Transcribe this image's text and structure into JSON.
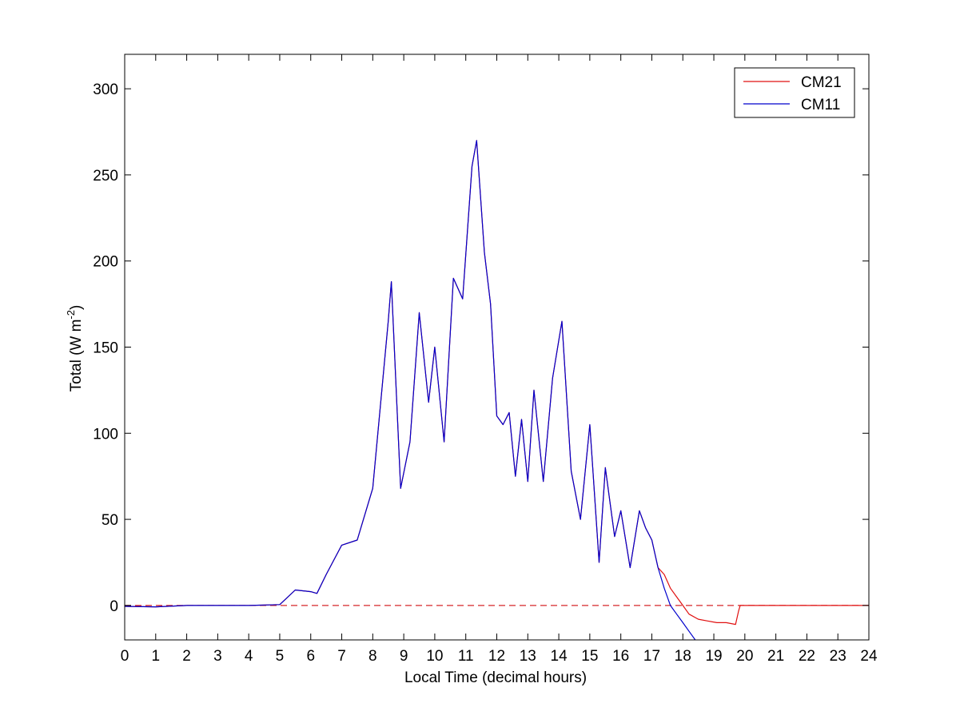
{
  "chart_data": {
    "type": "line",
    "title": "",
    "xlabel": "Local Time (decimal hours)",
    "ylabel_main": "Total (W m",
    "ylabel_sup": "-2",
    "ylabel_close": ")",
    "xlim": [
      0,
      24
    ],
    "ylim": [
      -20,
      320
    ],
    "x_ticks": [
      0,
      1,
      2,
      3,
      4,
      5,
      6,
      7,
      8,
      9,
      10,
      11,
      12,
      13,
      14,
      15,
      16,
      17,
      18,
      19,
      20,
      21,
      22,
      23,
      24
    ],
    "y_ticks": [
      0,
      50,
      100,
      150,
      200,
      250,
      300
    ],
    "grid": false,
    "legend_position": "top-right",
    "reference_line": {
      "y": 0,
      "style": "dashed",
      "color": "#d62728"
    },
    "colors": {
      "CM21": "#e01010",
      "CM11": "#0000cc"
    },
    "series": [
      {
        "name": "CM21",
        "x": [
          0,
          1,
          2,
          3,
          4,
          5,
          5.5,
          6,
          6.2,
          6.5,
          7,
          7.5,
          8,
          8.5,
          8.6,
          8.9,
          9.2,
          9.5,
          9.8,
          10,
          10.3,
          10.6,
          10.9,
          11.2,
          11.35,
          11.6,
          11.8,
          12,
          12.2,
          12.4,
          12.6,
          12.8,
          13,
          13.2,
          13.5,
          13.8,
          14.1,
          14.4,
          14.7,
          15,
          15.3,
          15.5,
          15.8,
          16,
          16.3,
          16.6,
          16.8,
          17,
          17.2,
          17.4,
          17.6,
          17.8,
          18,
          18.2,
          18.5,
          18.8,
          19.1,
          19.4,
          19.7,
          19.8,
          19.85,
          20,
          20.5,
          21,
          22,
          23,
          24
        ],
        "y": [
          -0.5,
          -0.8,
          0,
          0,
          0,
          0.5,
          9,
          8,
          7,
          18,
          35,
          38,
          68,
          165,
          188,
          68,
          95,
          170,
          118,
          150,
          95,
          190,
          178,
          255,
          270,
          205,
          175,
          110,
          105,
          112,
          75,
          108,
          72,
          125,
          72,
          132,
          165,
          78,
          50,
          105,
          25,
          80,
          40,
          55,
          22,
          55,
          45,
          38,
          22,
          18,
          10,
          5,
          0,
          -5,
          -8,
          -9,
          -10,
          -10,
          -11,
          -3,
          0,
          0,
          0,
          0,
          0,
          0,
          0
        ]
      },
      {
        "name": "CM11",
        "x": [
          0,
          1,
          2,
          3,
          4,
          5,
          5.5,
          6,
          6.2,
          6.5,
          7,
          7.5,
          8,
          8.5,
          8.6,
          8.9,
          9.2,
          9.5,
          9.8,
          10,
          10.3,
          10.6,
          10.9,
          11.2,
          11.35,
          11.6,
          11.8,
          12,
          12.2,
          12.4,
          12.6,
          12.8,
          13,
          13.2,
          13.5,
          13.8,
          14.1,
          14.4,
          14.7,
          15,
          15.3,
          15.5,
          15.8,
          16,
          16.3,
          16.6,
          16.8,
          17,
          17.2,
          17.4,
          17.6,
          17.8,
          18,
          18.2,
          18.4
        ],
        "y": [
          -0.5,
          -0.8,
          0,
          0,
          0,
          0.5,
          9,
          8,
          7,
          18,
          35,
          38,
          68,
          165,
          188,
          68,
          95,
          170,
          118,
          150,
          95,
          190,
          178,
          255,
          270,
          205,
          175,
          110,
          105,
          112,
          75,
          108,
          72,
          125,
          72,
          132,
          165,
          78,
          50,
          105,
          25,
          80,
          40,
          55,
          22,
          55,
          45,
          38,
          22,
          10,
          0,
          -5,
          -10,
          -15,
          -20
        ]
      }
    ]
  }
}
